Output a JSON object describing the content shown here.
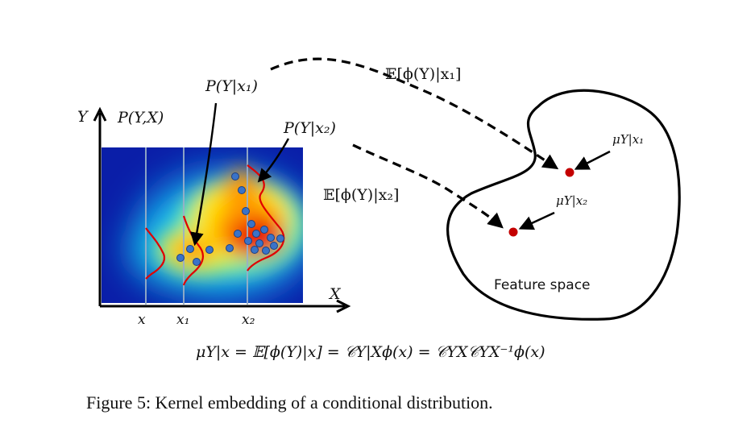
{
  "labels": {
    "y_axis": "Y",
    "x_axis": "X",
    "joint": "P(Y,X)",
    "cond_x1": "P(Y|x₁)",
    "cond_x2": "P(Y|x₂)",
    "tick_x": "x",
    "tick_x1": "x₁",
    "tick_x2": "x₂",
    "expect_x1": "𝔼[ϕ(Y)|x₁]",
    "expect_x2": "𝔼[ϕ(Y)|x₂]",
    "mu_x1": "μY|x₁",
    "mu_x2": "μY|x₂",
    "feature_space": "Feature space",
    "equation": "μY|x = 𝔼[ϕ(Y)|x] = 𝒞Y|Xϕ(x) = 𝒞YX𝒞YX⁻¹ϕ(x)"
  },
  "caption": "Figure 5: Kernel embedding of a conditional distribution.",
  "colors": {
    "heat_low": "#0a1ea8",
    "heat_mid": "#19c8f0",
    "heat_high": "#ffe000",
    "heat_peak": "#e80000",
    "dot_fill": "#3a73c8",
    "mean_point": "#c40000",
    "curve": "#e00000"
  }
}
